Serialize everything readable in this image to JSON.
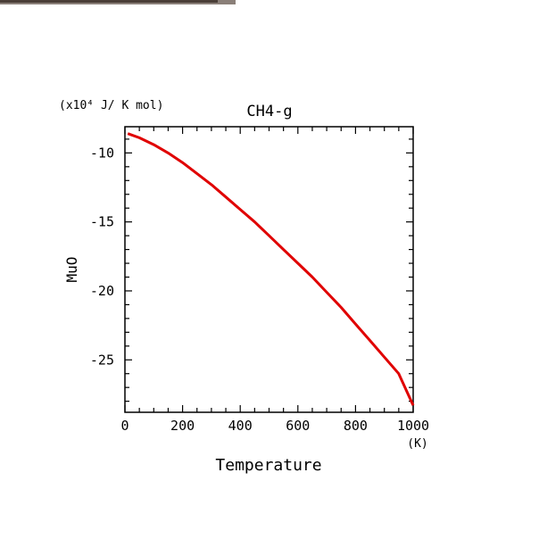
{
  "chart_data": {
    "type": "line",
    "title": "CH4-g",
    "ylabel": "MuO",
    "yunit": "(x10⁴ J/ K mol)",
    "xlabel": "Temperature",
    "xunit": "(K)",
    "xlim": [
      0,
      1000
    ],
    "ylim": [
      -28.8,
      -8.1
    ],
    "xticks": [
      0,
      200,
      400,
      600,
      800,
      1000
    ],
    "xtick_labels": [
      "0",
      "200",
      "400",
      "600",
      "800",
      "1000"
    ],
    "yticks": [
      -10,
      -15,
      -20,
      -25
    ],
    "ytick_labels": [
      "-10",
      "-15",
      "-20",
      "-25"
    ],
    "series": [
      {
        "color": "#e00000",
        "x": [
          10,
          50,
          100,
          150,
          200,
          250,
          300,
          350,
          400,
          450,
          500,
          550,
          600,
          650,
          700,
          750,
          800,
          850,
          900,
          950,
          1000
        ],
        "y": [
          -8.6,
          -8.9,
          -9.4,
          -10.0,
          -10.7,
          -11.5,
          -12.3,
          -13.2,
          -14.1,
          -15.0,
          -16.0,
          -17.0,
          -18.0,
          -19.0,
          -20.1,
          -21.2,
          -22.4,
          -23.6,
          -24.8,
          -26.0,
          -28.3
        ]
      }
    ]
  }
}
